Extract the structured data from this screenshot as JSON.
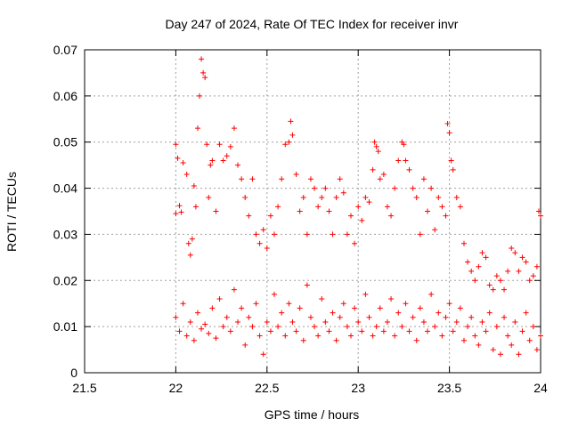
{
  "chart_data": {
    "type": "scatter",
    "title": "Day 247 of 2024, Rate Of TEC Index for receiver invr",
    "xlabel": "GPS time / hours",
    "ylabel": "ROTI / TECUs",
    "xlim": [
      21.5,
      24
    ],
    "ylim": [
      0,
      0.07
    ],
    "x_ticks": [
      21.5,
      22,
      22.5,
      23,
      23.5,
      24
    ],
    "x_tick_labels": [
      "21.5",
      "22",
      "22.5",
      "23",
      "23.5",
      "24"
    ],
    "y_ticks": [
      0,
      0.01,
      0.02,
      0.03,
      0.04,
      0.05,
      0.06,
      0.07
    ],
    "y_tick_labels": [
      "0",
      "0.01",
      "0.02",
      "0.03",
      "0.04",
      "0.05",
      "0.06",
      "0.07"
    ],
    "grid": true,
    "marker": "+",
    "series": [
      {
        "name": "ROTI",
        "color": "#ff0000",
        "description_points": "dense cloud of ROTI samples from 22.0 to 24.0 hours",
        "points": [
          [
            22.0,
            0.0495
          ],
          [
            22.01,
            0.0465
          ],
          [
            22.0,
            0.0345
          ],
          [
            22.02,
            0.0362
          ],
          [
            22.03,
            0.0348
          ],
          [
            22.04,
            0.0455
          ],
          [
            22.06,
            0.043
          ],
          [
            22.07,
            0.028
          ],
          [
            22.08,
            0.0255
          ],
          [
            22.09,
            0.029
          ],
          [
            22.1,
            0.0405
          ],
          [
            22.11,
            0.036
          ],
          [
            22.12,
            0.053
          ],
          [
            22.13,
            0.06
          ],
          [
            22.14,
            0.068
          ],
          [
            22.15,
            0.065
          ],
          [
            22.16,
            0.064
          ],
          [
            22.17,
            0.0495
          ],
          [
            22.18,
            0.038
          ],
          [
            22.19,
            0.045
          ],
          [
            22.2,
            0.046
          ],
          [
            22.22,
            0.035
          ],
          [
            22.24,
            0.0495
          ],
          [
            22.26,
            0.046
          ],
          [
            22.28,
            0.047
          ],
          [
            22.3,
            0.049
          ],
          [
            22.32,
            0.053
          ],
          [
            22.34,
            0.045
          ],
          [
            22.36,
            0.042
          ],
          [
            22.38,
            0.038
          ],
          [
            22.4,
            0.034
          ],
          [
            22.42,
            0.042
          ],
          [
            22.44,
            0.03
          ],
          [
            22.46,
            0.028
          ],
          [
            22.48,
            0.031
          ],
          [
            22.5,
            0.027
          ],
          [
            22.52,
            0.034
          ],
          [
            22.54,
            0.03
          ],
          [
            22.56,
            0.036
          ],
          [
            22.58,
            0.042
          ],
          [
            22.6,
            0.0495
          ],
          [
            22.62,
            0.05
          ],
          [
            22.63,
            0.0545
          ],
          [
            22.64,
            0.0515
          ],
          [
            22.66,
            0.043
          ],
          [
            22.68,
            0.035
          ],
          [
            22.7,
            0.038
          ],
          [
            22.72,
            0.03
          ],
          [
            22.74,
            0.042
          ],
          [
            22.76,
            0.04
          ],
          [
            22.78,
            0.036
          ],
          [
            22.8,
            0.038
          ],
          [
            22.82,
            0.04
          ],
          [
            22.84,
            0.035
          ],
          [
            22.86,
            0.03
          ],
          [
            22.88,
            0.038
          ],
          [
            22.9,
            0.042
          ],
          [
            22.92,
            0.039
          ],
          [
            22.94,
            0.03
          ],
          [
            22.96,
            0.034
          ],
          [
            22.98,
            0.028
          ],
          [
            23.0,
            0.036
          ],
          [
            23.02,
            0.033
          ],
          [
            23.04,
            0.038
          ],
          [
            23.06,
            0.037
          ],
          [
            23.08,
            0.044
          ],
          [
            23.09,
            0.05
          ],
          [
            23.1,
            0.049
          ],
          [
            23.11,
            0.048
          ],
          [
            23.12,
            0.042
          ],
          [
            23.14,
            0.043
          ],
          [
            23.16,
            0.036
          ],
          [
            23.18,
            0.034
          ],
          [
            23.2,
            0.04
          ],
          [
            23.22,
            0.046
          ],
          [
            23.24,
            0.05
          ],
          [
            23.25,
            0.0495
          ],
          [
            23.26,
            0.046
          ],
          [
            23.28,
            0.044
          ],
          [
            23.3,
            0.04
          ],
          [
            23.32,
            0.038
          ],
          [
            23.34,
            0.03
          ],
          [
            23.36,
            0.042
          ],
          [
            23.38,
            0.035
          ],
          [
            23.4,
            0.04
          ],
          [
            23.42,
            0.031
          ],
          [
            23.44,
            0.038
          ],
          [
            23.46,
            0.036
          ],
          [
            23.48,
            0.034
          ],
          [
            23.49,
            0.054
          ],
          [
            23.5,
            0.052
          ],
          [
            23.51,
            0.046
          ],
          [
            23.52,
            0.044
          ],
          [
            23.54,
            0.038
          ],
          [
            23.56,
            0.036
          ],
          [
            23.58,
            0.028
          ],
          [
            23.6,
            0.024
          ],
          [
            23.62,
            0.022
          ],
          [
            23.64,
            0.02
          ],
          [
            23.66,
            0.023
          ],
          [
            23.68,
            0.026
          ],
          [
            23.7,
            0.025
          ],
          [
            23.72,
            0.019
          ],
          [
            23.74,
            0.018
          ],
          [
            23.76,
            0.021
          ],
          [
            23.78,
            0.02
          ],
          [
            23.8,
            0.018
          ],
          [
            23.82,
            0.022
          ],
          [
            23.84,
            0.027
          ],
          [
            23.86,
            0.026
          ],
          [
            23.88,
            0.022
          ],
          [
            23.9,
            0.025
          ],
          [
            23.92,
            0.024
          ],
          [
            23.94,
            0.02
          ],
          [
            23.96,
            0.021
          ],
          [
            23.98,
            0.023
          ],
          [
            23.99,
            0.035
          ],
          [
            24.0,
            0.034
          ],
          [
            22.0,
            0.012
          ],
          [
            22.02,
            0.009
          ],
          [
            22.04,
            0.015
          ],
          [
            22.06,
            0.008
          ],
          [
            22.08,
            0.011
          ],
          [
            22.1,
            0.007
          ],
          [
            22.12,
            0.013
          ],
          [
            22.14,
            0.0095
          ],
          [
            22.16,
            0.0105
          ],
          [
            22.18,
            0.0085
          ],
          [
            22.2,
            0.014
          ],
          [
            22.22,
            0.0075
          ],
          [
            22.24,
            0.016
          ],
          [
            22.26,
            0.01
          ],
          [
            22.28,
            0.012
          ],
          [
            22.3,
            0.009
          ],
          [
            22.32,
            0.018
          ],
          [
            22.34,
            0.011
          ],
          [
            22.36,
            0.014
          ],
          [
            22.38,
            0.006
          ],
          [
            22.4,
            0.012
          ],
          [
            22.42,
            0.01
          ],
          [
            22.44,
            0.015
          ],
          [
            22.46,
            0.008
          ],
          [
            22.48,
            0.004
          ],
          [
            22.5,
            0.011
          ],
          [
            22.52,
            0.009
          ],
          [
            22.54,
            0.017
          ],
          [
            22.56,
            0.01
          ],
          [
            22.58,
            0.013
          ],
          [
            22.6,
            0.008
          ],
          [
            22.62,
            0.015
          ],
          [
            22.64,
            0.011
          ],
          [
            22.66,
            0.009
          ],
          [
            22.68,
            0.014
          ],
          [
            22.7,
            0.007
          ],
          [
            22.72,
            0.019
          ],
          [
            22.74,
            0.012
          ],
          [
            22.76,
            0.01
          ],
          [
            22.78,
            0.008
          ],
          [
            22.8,
            0.016
          ],
          [
            22.82,
            0.011
          ],
          [
            22.84,
            0.009
          ],
          [
            22.86,
            0.013
          ],
          [
            22.88,
            0.007
          ],
          [
            22.9,
            0.012
          ],
          [
            22.92,
            0.015
          ],
          [
            22.94,
            0.01
          ],
          [
            22.96,
            0.008
          ],
          [
            22.98,
            0.014
          ],
          [
            23.0,
            0.011
          ],
          [
            23.02,
            0.009
          ],
          [
            23.04,
            0.017
          ],
          [
            23.06,
            0.012
          ],
          [
            23.08,
            0.008
          ],
          [
            23.1,
            0.01
          ],
          [
            23.12,
            0.014
          ],
          [
            23.14,
            0.009
          ],
          [
            23.16,
            0.011
          ],
          [
            23.18,
            0.016
          ],
          [
            23.2,
            0.008
          ],
          [
            23.22,
            0.013
          ],
          [
            23.24,
            0.01
          ],
          [
            23.26,
            0.015
          ],
          [
            23.28,
            0.009
          ],
          [
            23.3,
            0.012
          ],
          [
            23.32,
            0.007
          ],
          [
            23.34,
            0.014
          ],
          [
            23.36,
            0.011
          ],
          [
            23.38,
            0.009
          ],
          [
            23.4,
            0.017
          ],
          [
            23.42,
            0.01
          ],
          [
            23.44,
            0.013
          ],
          [
            23.46,
            0.008
          ],
          [
            23.48,
            0.012
          ],
          [
            23.5,
            0.015
          ],
          [
            23.52,
            0.009
          ],
          [
            23.54,
            0.011
          ],
          [
            23.56,
            0.014
          ],
          [
            23.58,
            0.007
          ],
          [
            23.6,
            0.01
          ],
          [
            23.62,
            0.012
          ],
          [
            23.64,
            0.008
          ],
          [
            23.66,
            0.006
          ],
          [
            23.68,
            0.011
          ],
          [
            23.7,
            0.009
          ],
          [
            23.72,
            0.013
          ],
          [
            23.74,
            0.005
          ],
          [
            23.76,
            0.01
          ],
          [
            23.78,
            0.004
          ],
          [
            23.8,
            0.012
          ],
          [
            23.82,
            0.008
          ],
          [
            23.84,
            0.006
          ],
          [
            23.86,
            0.011
          ],
          [
            23.88,
            0.004
          ],
          [
            23.9,
            0.009
          ],
          [
            23.92,
            0.013
          ],
          [
            23.94,
            0.007
          ],
          [
            23.96,
            0.01
          ],
          [
            23.98,
            0.005
          ],
          [
            24.0,
            0.008
          ]
        ]
      }
    ]
  }
}
